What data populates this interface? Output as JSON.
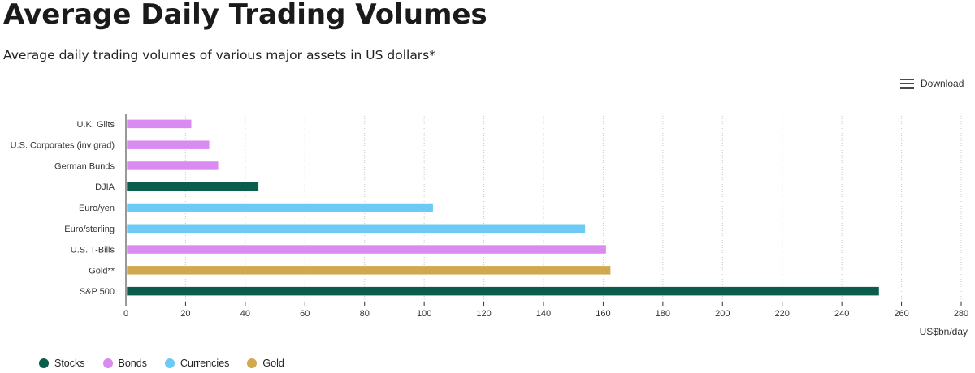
{
  "header": {
    "title": "Average Daily Trading Volumes",
    "subtitle": "Average daily trading volumes of various major assets in US dollars*"
  },
  "toolbar": {
    "download_label": "Download",
    "download_icon": "hamburger-menu-icon"
  },
  "colors": {
    "Stocks": "#0a5c4b",
    "Bonds": "#d98bef",
    "Currencies": "#6ccaf5",
    "Gold": "#d1a84e",
    "grid": "#c8c8c8",
    "axis": "#333333"
  },
  "legend": [
    {
      "name": "Stocks"
    },
    {
      "name": "Bonds"
    },
    {
      "name": "Currencies"
    },
    {
      "name": "Gold"
    }
  ],
  "chart_data": {
    "type": "bar",
    "orientation": "horizontal",
    "title": "Average Daily Trading Volumes",
    "subtitle": "Average daily trading volumes of various major assets in US dollars*",
    "xlabel": "US$bn/day",
    "xlim": [
      0,
      280
    ],
    "xticks": [
      0,
      20,
      40,
      60,
      80,
      100,
      120,
      140,
      160,
      180,
      200,
      220,
      240,
      260,
      280
    ],
    "grid": "vertical dotted",
    "legend_position": "bottom-left",
    "categories": [
      "U.K. Gilts",
      "U.S. Corporates (inv grad)",
      "German Bunds",
      "DJIA",
      "Euro/yen",
      "Euro/sterling",
      "U.S. T-Bills",
      "Gold**",
      "S&P 500"
    ],
    "values": [
      22,
      28,
      31,
      44.5,
      103,
      154,
      161,
      162.5,
      252.5
    ],
    "groups": [
      "Bonds",
      "Bonds",
      "Bonds",
      "Stocks",
      "Currencies",
      "Currencies",
      "Bonds",
      "Gold",
      "Stocks"
    ]
  }
}
